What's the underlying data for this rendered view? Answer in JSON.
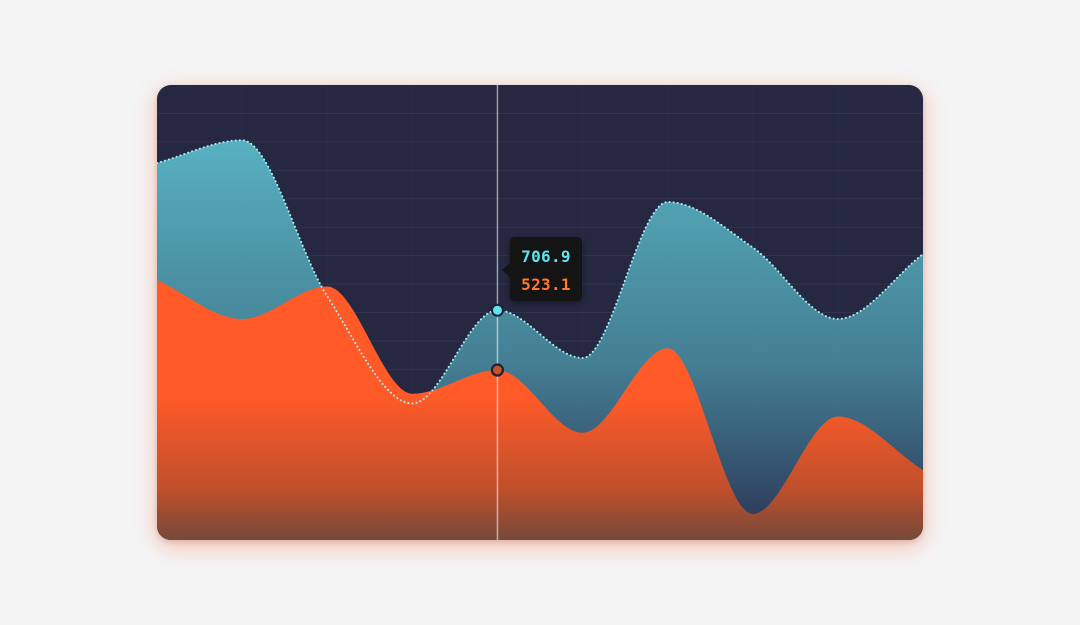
{
  "colors": {
    "background": "#f4f4f4",
    "card": "#252840",
    "series_a": "#5ab8c8",
    "series_b": "#ff5a28",
    "tooltip_bg": "#141414"
  },
  "tooltip": {
    "values": [
      "706.9",
      "523.1"
    ]
  },
  "chart_data": {
    "type": "area",
    "x": [
      0,
      1,
      2,
      3,
      4,
      5,
      6,
      7,
      8,
      9
    ],
    "ylim": [
      0,
      1400
    ],
    "grid": true,
    "legend": "none",
    "hover_index": 4,
    "series": [
      {
        "color": "#5ab8c8",
        "style": "dotted-outline",
        "values": [
          1160,
          1230,
          750,
          420,
          707,
          560,
          1040,
          900,
          680,
          880
        ]
      },
      {
        "color": "#ff5a28",
        "style": "filled",
        "values": [
          800,
          680,
          780,
          450,
          523,
          330,
          590,
          80,
          380,
          215
        ]
      }
    ]
  }
}
